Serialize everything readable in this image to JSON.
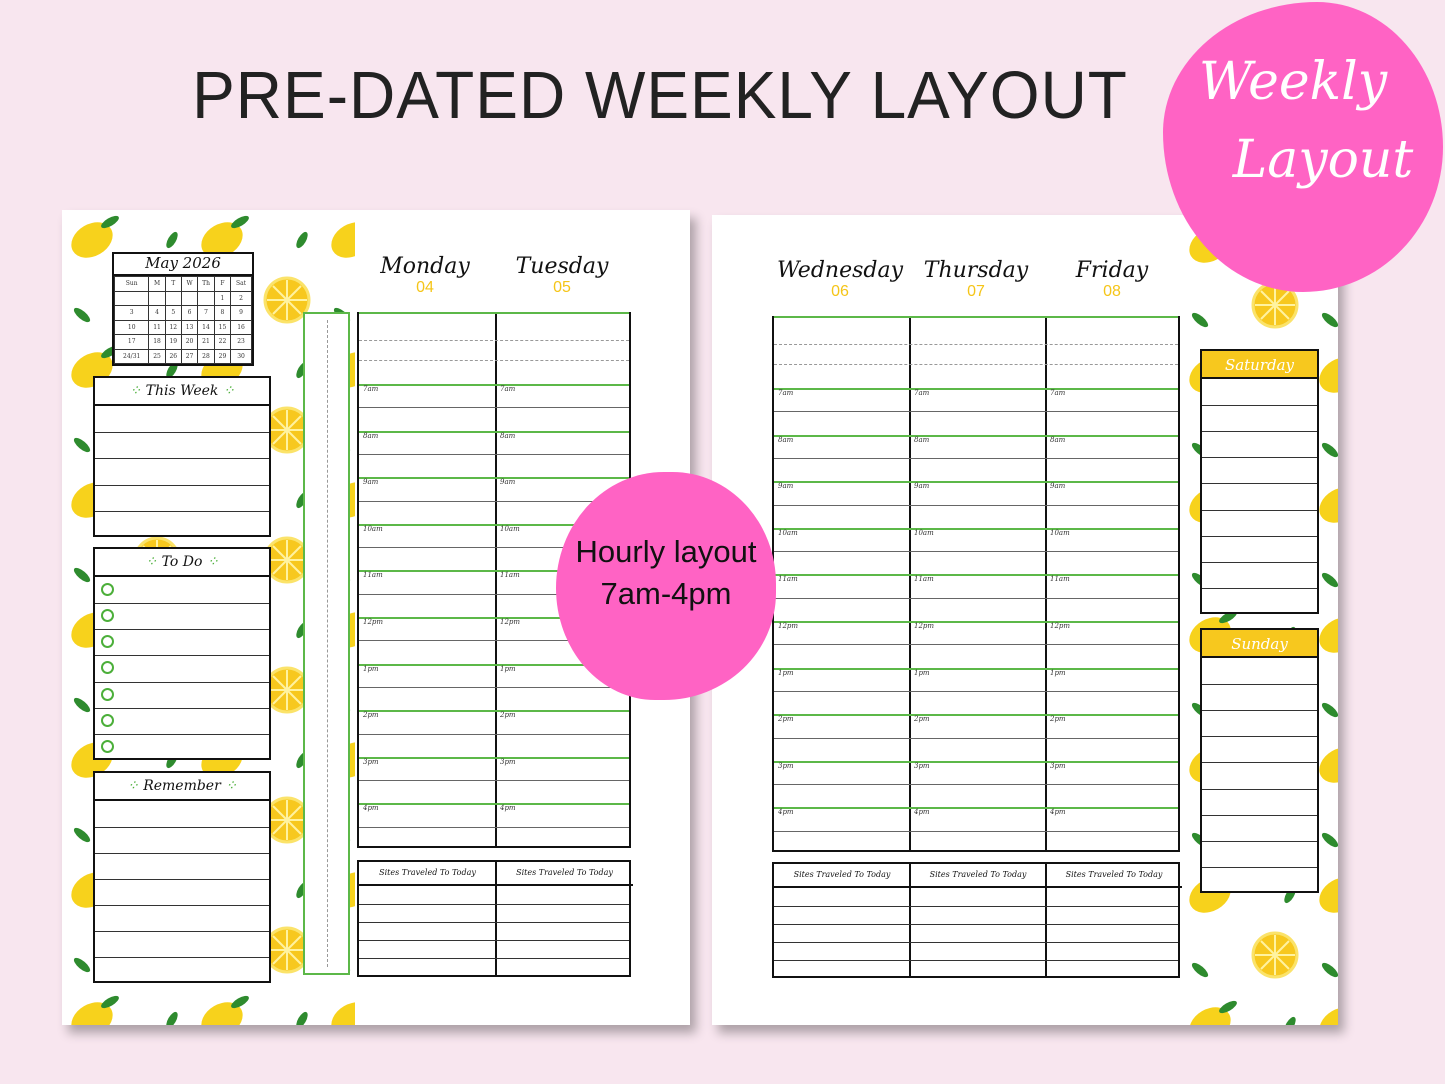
{
  "title": "PRE-DATED WEEKLY LAYOUT",
  "badge_top": {
    "line1": "Weekly",
    "line2": "Layout"
  },
  "badge_center": {
    "line1": "Hourly layout",
    "line2": "7am-4pm"
  },
  "colors": {
    "background": "#f8e6ef",
    "badge": "#ff63c4",
    "green": "#5cb848",
    "yellow": "#f7c81e"
  },
  "calendar": {
    "title": "May 2026",
    "weekdays": [
      "Sun",
      "M",
      "T",
      "W",
      "Th",
      "F",
      "Sat"
    ],
    "weeks": [
      [
        "",
        "",
        "",
        "",
        "",
        "1",
        "2"
      ],
      [
        "3",
        "4",
        "5",
        "6",
        "7",
        "8",
        "9"
      ],
      [
        "10",
        "11",
        "12",
        "13",
        "14",
        "15",
        "16"
      ],
      [
        "17",
        "18",
        "19",
        "20",
        "21",
        "22",
        "23"
      ],
      [
        "24/31",
        "25",
        "26",
        "27",
        "28",
        "29",
        "30"
      ]
    ]
  },
  "sections": {
    "this_week": "This Week",
    "todo": "To Do",
    "remember": "Remember",
    "sites": "Sites Traveled To Today",
    "saturday": "Saturday",
    "sunday": "Sunday"
  },
  "hours": [
    "7am",
    "8am",
    "9am",
    "10am",
    "11am",
    "12pm",
    "1pm",
    "2pm",
    "3pm",
    "4pm"
  ],
  "left_days": [
    {
      "name": "Monday",
      "date": "04"
    },
    {
      "name": "Tuesday",
      "date": "05"
    }
  ],
  "right_days": [
    {
      "name": "Wednesday",
      "date": "06"
    },
    {
      "name": "Thursday",
      "date": "07"
    },
    {
      "name": "Friday",
      "date": "08"
    }
  ],
  "todo_count": 7
}
